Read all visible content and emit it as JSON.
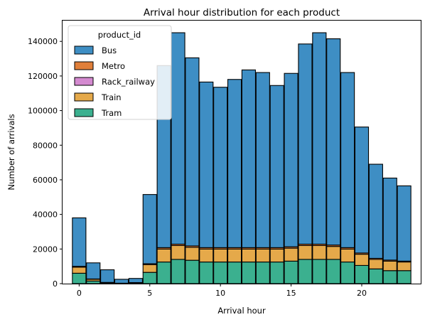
{
  "chart_data": {
    "type": "bar",
    "stacked": true,
    "title": "Arrival hour distribution for each product",
    "xlabel": "Arrival hour",
    "ylabel": "Number of arrivals",
    "xlim": [
      -1.175,
      24.175
    ],
    "ylim": [
      0,
      152000
    ],
    "xticks": [
      0,
      5,
      10,
      15,
      20
    ],
    "yticks": [
      0,
      20000,
      40000,
      60000,
      80000,
      100000,
      120000,
      140000
    ],
    "bin_width": 0.958,
    "x": [
      0,
      1,
      2,
      3,
      4,
      5,
      6,
      7,
      8,
      9,
      10,
      11,
      12,
      13,
      14,
      15,
      16,
      17,
      18,
      19,
      20,
      21,
      22,
      23
    ],
    "legend": {
      "title": "product_id",
      "placement": "upper-left"
    },
    "series": [
      {
        "name": "Tram",
        "color": "#3bb08f",
        "values": [
          6000,
          1500,
          300,
          100,
          200,
          6500,
          12500,
          14000,
          13500,
          12500,
          12500,
          12500,
          12500,
          12500,
          12500,
          13000,
          14000,
          14000,
          14000,
          12500,
          10500,
          8500,
          7500,
          7500
        ]
      },
      {
        "name": "Train",
        "color": "#e5a94a",
        "values": [
          3500,
          1000,
          300,
          100,
          300,
          4500,
          7500,
          8000,
          7500,
          7500,
          7500,
          7500,
          7500,
          7500,
          7500,
          7500,
          8000,
          8000,
          7500,
          7500,
          6500,
          5500,
          5500,
          5000
        ]
      },
      {
        "name": "Rack_railway",
        "color": "#d48ad0",
        "values": [
          0,
          0,
          0,
          0,
          0,
          0,
          0,
          0,
          0,
          0,
          0,
          0,
          0,
          0,
          0,
          0,
          0,
          0,
          0,
          0,
          0,
          0,
          0,
          0
        ]
      },
      {
        "name": "Metro",
        "color": "#e07f3a",
        "values": [
          500,
          200,
          100,
          50,
          100,
          500,
          800,
          800,
          800,
          800,
          800,
          800,
          800,
          800,
          800,
          800,
          800,
          800,
          800,
          800,
          700,
          600,
          600,
          500
        ]
      },
      {
        "name": "Bus",
        "color": "#3e8ec4",
        "values": [
          28000,
          9300,
          7300,
          2250,
          2400,
          40000,
          105200,
          122200,
          108700,
          95700,
          92700,
          97200,
          102700,
          101200,
          93700,
          100200,
          115700,
          122200,
          119200,
          101200,
          72800,
          54400,
          47400,
          43500
        ]
      }
    ],
    "legend_order": [
      "Bus",
      "Metro",
      "Rack_railway",
      "Train",
      "Tram"
    ],
    "grid": false
  }
}
